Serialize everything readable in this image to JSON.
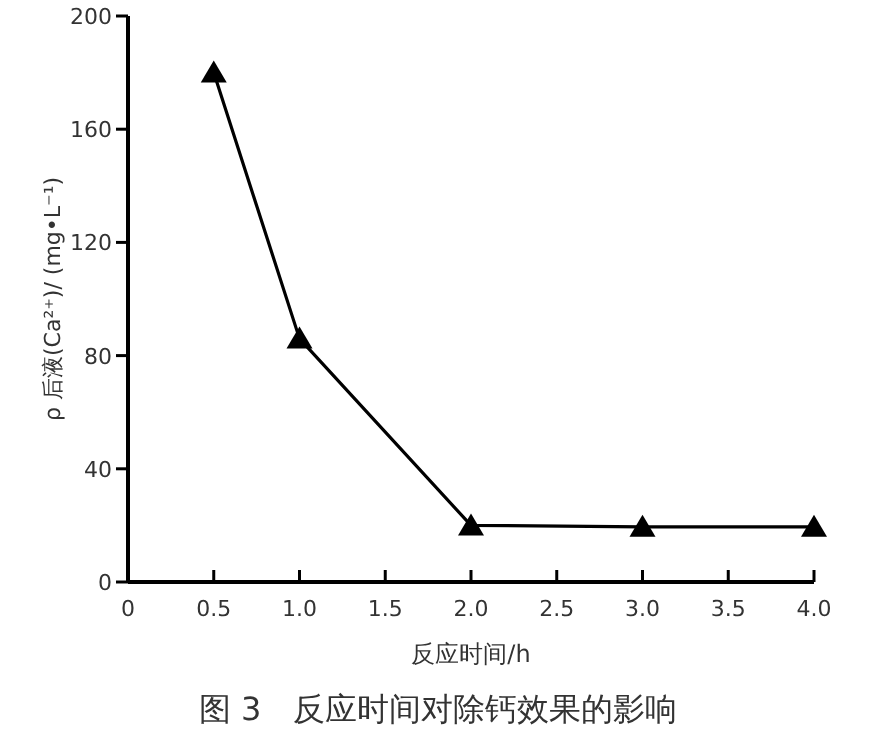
{
  "chart_data": {
    "type": "line",
    "title": "图 3　反应时间对除钙效果的影响",
    "xlabel": "反应时间/h",
    "ylabel": "ρ 后液(Ca²⁺)/ (mg•L⁻¹)",
    "x": [
      0.5,
      1.0,
      2.0,
      3.0,
      4.0
    ],
    "series": [
      {
        "color": "#000000",
        "values": [
          180,
          86,
          20,
          19.5,
          19.5
        ]
      }
    ],
    "xlim": [
      0,
      4
    ],
    "ylim": [
      0,
      200
    ],
    "xticks": [
      0,
      {
        "value": 0.5,
        "label": "0.5"
      },
      {
        "value": 1,
        "label": "1.0"
      },
      {
        "value": 1.5,
        "label": "1.5"
      },
      {
        "value": 2,
        "label": "2.0"
      },
      {
        "value": 2.5,
        "label": "2.5"
      },
      {
        "value": 3,
        "label": "3.0"
      },
      {
        "value": 3.5,
        "label": "3.5"
      },
      {
        "value": 4,
        "label": "4.0"
      }
    ],
    "yticks": [
      0,
      40,
      80,
      120,
      160,
      200
    ],
    "marker": "triangle",
    "line_style": "solid"
  }
}
